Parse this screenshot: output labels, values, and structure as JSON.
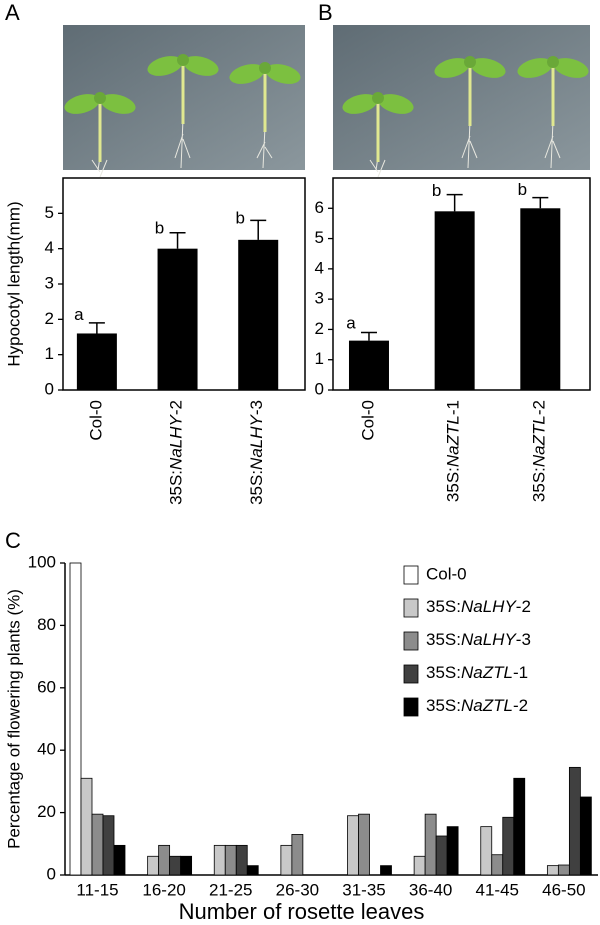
{
  "chart_data": [
    {
      "type": "bar",
      "panel": "A",
      "ylabel": "Hypocotyl length(mm)",
      "categories": [
        "Col-0",
        "35S:NaLHY-2",
        "35S:NaLHY-3"
      ],
      "values": [
        1.6,
        4.0,
        4.25
      ],
      "errors": [
        0.3,
        0.45,
        0.55
      ],
      "annotations": [
        "a",
        "b",
        "b"
      ],
      "color": "#000000",
      "ylim": [
        0,
        6
      ],
      "yticks": [
        0,
        1,
        2,
        3,
        4,
        5
      ]
    },
    {
      "type": "bar",
      "panel": "B",
      "categories": [
        "Col-0",
        "35S:NaZTL-1",
        "35S:NaZTL-2"
      ],
      "values": [
        1.63,
        5.9,
        6.0
      ],
      "errors": [
        0.27,
        0.55,
        0.35
      ],
      "annotations": [
        "a",
        "b",
        "b"
      ],
      "color": "#000000",
      "ylim": [
        0,
        7
      ],
      "yticks": [
        0,
        1,
        2,
        3,
        4,
        5,
        6
      ]
    },
    {
      "type": "grouped_bar",
      "panel": "C",
      "xlabel": "Number of rosette leaves",
      "ylabel": "Percentage of flowering plants (%)",
      "categories": [
        "11-15",
        "16-20",
        "21-25",
        "26-30",
        "31-35",
        "36-40",
        "41-45",
        "46-50"
      ],
      "series": [
        {
          "name": "Col-0",
          "color": "#ffffff",
          "values": [
            100,
            0,
            0,
            0,
            0,
            0,
            0,
            0
          ]
        },
        {
          "name": "35S:NaLHY-2",
          "color": "#c8c8c8",
          "values": [
            31,
            6,
            9.5,
            9.5,
            19,
            6,
            15.5,
            3
          ]
        },
        {
          "name": "35S:NaLHY-3",
          "color": "#8c8c8c",
          "values": [
            19.5,
            9.5,
            9.5,
            13,
            19.5,
            19.5,
            6.5,
            3.2
          ]
        },
        {
          "name": "35S:NaZTL-1",
          "color": "#404040",
          "values": [
            19,
            6,
            9.5,
            0,
            0,
            12.5,
            18.5,
            34.5
          ]
        },
        {
          "name": "35S:NaZTL-2",
          "color": "#000000",
          "values": [
            9.5,
            6,
            3,
            0,
            3,
            15.5,
            31,
            25
          ]
        }
      ],
      "ylim": [
        0,
        100
      ],
      "yticks": [
        0,
        20,
        40,
        60,
        80,
        100
      ],
      "legend": "upper right"
    }
  ]
}
